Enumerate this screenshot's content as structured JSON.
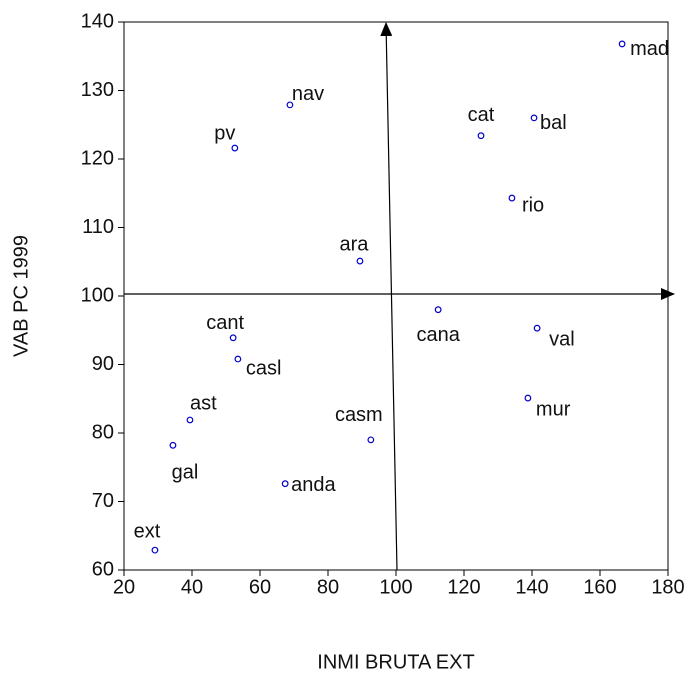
{
  "chart_data": {
    "type": "scatter",
    "x_label": "INMI BRUTA EXT",
    "y_label": "VAB PC 1999",
    "labels": [
      "mad",
      "bal",
      "cat",
      "rio",
      "nav",
      "pv",
      "ara",
      "cana",
      "val",
      "cant",
      "casl",
      "mur",
      "ast",
      "casm",
      "gal",
      "anda",
      "ext"
    ],
    "x": [
      166.5,
      140.6,
      125.0,
      134.1,
      68.8,
      52.6,
      89.4,
      112.4,
      141.5,
      52.1,
      53.5,
      138.8,
      39.4,
      92.6,
      34.4,
      67.4,
      29.1
    ],
    "values": [
      136.8,
      126.0,
      123.4,
      114.3,
      127.9,
      121.6,
      105.1,
      98.0,
      95.3,
      93.9,
      90.8,
      85.1,
      81.9,
      79.0,
      78.2,
      72.6,
      62.9
    ],
    "color": "#0000cc",
    "xlim": [
      20,
      180
    ],
    "xticks": [
      20,
      40,
      60,
      80,
      100,
      120,
      140,
      160,
      180
    ],
    "ylim": [
      60,
      140
    ],
    "yticks": [
      60,
      70,
      80,
      90,
      100,
      110,
      120,
      130,
      140
    ],
    "grid": false
  }
}
